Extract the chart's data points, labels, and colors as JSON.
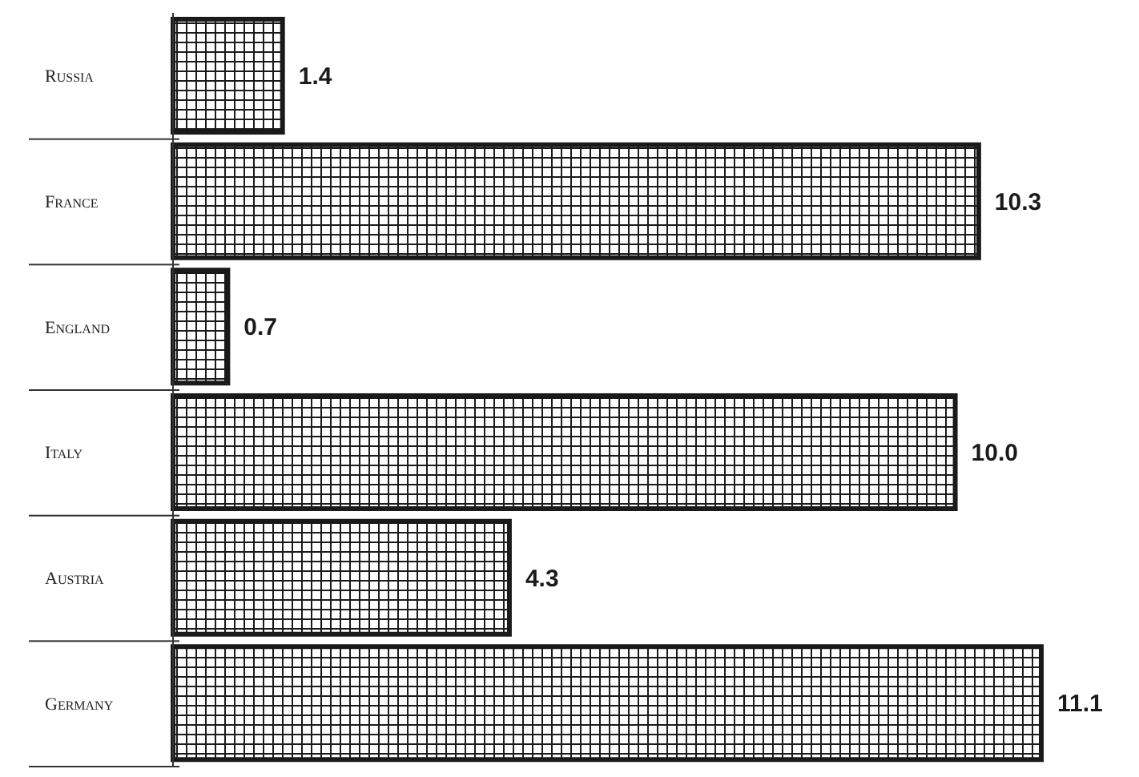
{
  "chart_data": {
    "type": "bar",
    "orientation": "horizontal",
    "categories": [
      "Russia",
      "France",
      "England",
      "Italy",
      "Austria",
      "Germany"
    ],
    "values": [
      1.4,
      10.3,
      0.7,
      10.0,
      4.3,
      11.1
    ],
    "value_labels": [
      "1.4",
      "10.3",
      "0.7",
      "10.0",
      "4.3",
      "11.1"
    ],
    "color": "#1a1a1a"
  }
}
